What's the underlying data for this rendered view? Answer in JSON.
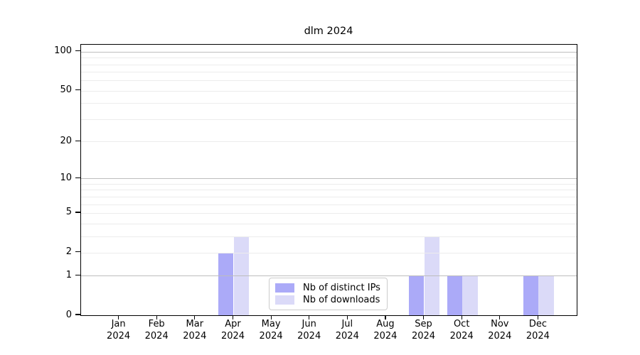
{
  "title": "dlm 2024",
  "chart_data": {
    "type": "bar",
    "title": "dlm 2024",
    "categories": [
      "Jan 2024",
      "Feb 2024",
      "Mar 2024",
      "Apr 2024",
      "May 2024",
      "Jun 2024",
      "Jul 2024",
      "Aug 2024",
      "Sep 2024",
      "Oct 2024",
      "Nov 2024",
      "Dec 2024"
    ],
    "series": [
      {
        "name": "Nb of distinct IPs",
        "color": "#abaaf8",
        "values": [
          0,
          0,
          0,
          2,
          0,
          0,
          0,
          0,
          1,
          1,
          0,
          1
        ]
      },
      {
        "name": "Nb of downloads",
        "color": "#dbdaf8",
        "values": [
          0,
          0,
          0,
          3,
          0,
          0,
          0,
          0,
          3,
          1,
          0,
          1
        ]
      }
    ],
    "xlabel": "",
    "ylabel": "",
    "yscale": "log1p",
    "ylim": [
      0,
      113
    ],
    "yticks": [
      0,
      1,
      2,
      5,
      10,
      20,
      50,
      100
    ],
    "grid": {
      "major_lines": [
        1,
        10,
        100
      ],
      "minor_lines": [
        2,
        3,
        4,
        5,
        6,
        7,
        8,
        9,
        20,
        30,
        40,
        50,
        60,
        70,
        80,
        90
      ],
      "major_color": "#bdbdbd",
      "minor_color": "#ececec",
      "grid_above_bars": true
    },
    "legend_position": "lower center"
  }
}
